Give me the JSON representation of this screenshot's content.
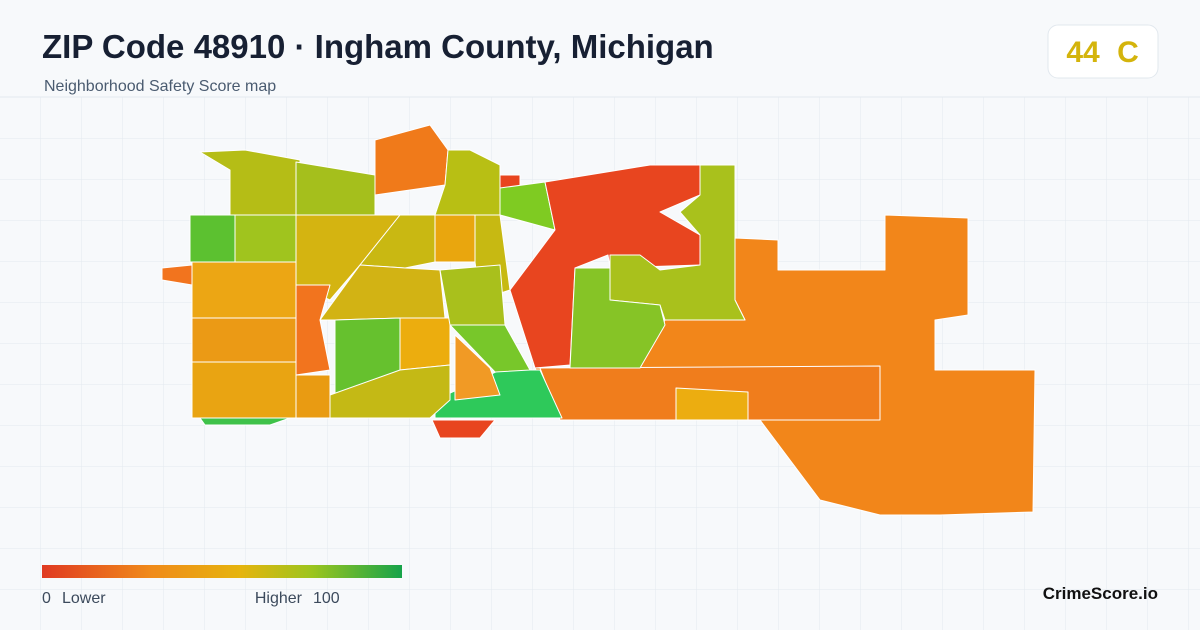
{
  "header": {
    "title": "ZIP Code 48910 · Ingham County, Michigan",
    "subtitle": "Neighborhood Safety Score map"
  },
  "score": {
    "value": 44,
    "grade": "C"
  },
  "legend": {
    "min": 0,
    "min_label": "Lower",
    "max_label": "Higher",
    "max": 100
  },
  "brand": "CrimeScore.io"
}
